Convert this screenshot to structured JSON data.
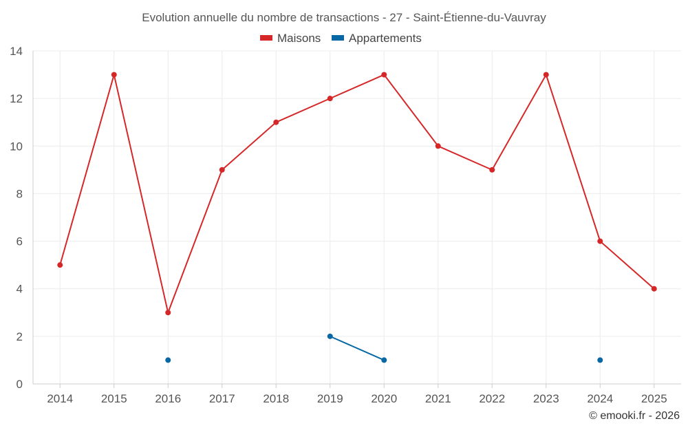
{
  "chart_data": {
    "type": "line",
    "title": "Evolution annuelle du nombre de transactions - 27 - Saint-Étienne-du-Vauvray",
    "categories": [
      "2014",
      "2015",
      "2016",
      "2017",
      "2018",
      "2019",
      "2020",
      "2021",
      "2022",
      "2023",
      "2024",
      "2025"
    ],
    "series": [
      {
        "name": "Maisons",
        "color": "#d62728",
        "values": [
          5,
          13,
          3,
          9,
          11,
          12,
          13,
          10,
          9,
          13,
          6,
          4
        ]
      },
      {
        "name": "Appartements",
        "color": "#0868a4",
        "values": [
          null,
          null,
          1,
          null,
          null,
          2,
          1,
          null,
          null,
          null,
          1,
          null
        ]
      }
    ],
    "ylim": [
      0,
      14
    ],
    "yticks": [
      0,
      2,
      4,
      6,
      8,
      10,
      12,
      14
    ],
    "xlabel": "",
    "ylabel": "",
    "legend_position": "top-center",
    "grid": true
  },
  "credit": "© emooki.fr - 2026"
}
